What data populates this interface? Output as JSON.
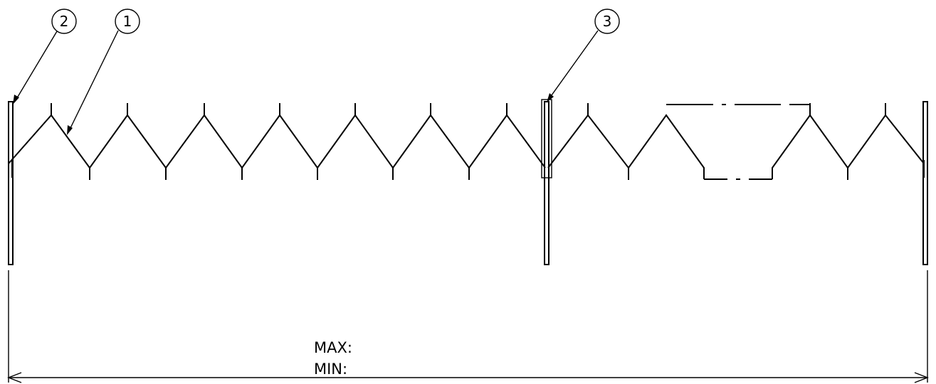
{
  "balloons": [
    {
      "id": "2",
      "label": "2"
    },
    {
      "id": "1",
      "label": "1"
    },
    {
      "id": "3",
      "label": "3"
    }
  ],
  "dimension": {
    "max_label": "MAX:",
    "min_label": "MIN:"
  },
  "colors": {
    "line": "#000000",
    "background": "#ffffff"
  }
}
